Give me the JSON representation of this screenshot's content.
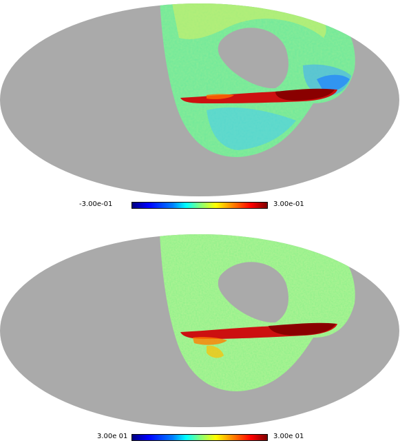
{
  "maps": [
    {
      "id": "top",
      "colorbar": {
        "min_label": "-3.00e-01",
        "max_label": "3.00e-01"
      }
    },
    {
      "id": "bottom",
      "colorbar": {
        "min_label": "3.00e 01",
        "max_label": "3.00e 01"
      }
    }
  ],
  "colors": {
    "unobserved": "#aaaaaa",
    "background": "#ffffff",
    "colormap": [
      "#00007f",
      "#0000ff",
      "#007fff",
      "#00ffff",
      "#7fff7f",
      "#ffff00",
      "#ff7f00",
      "#ff0000",
      "#7f0000"
    ]
  }
}
